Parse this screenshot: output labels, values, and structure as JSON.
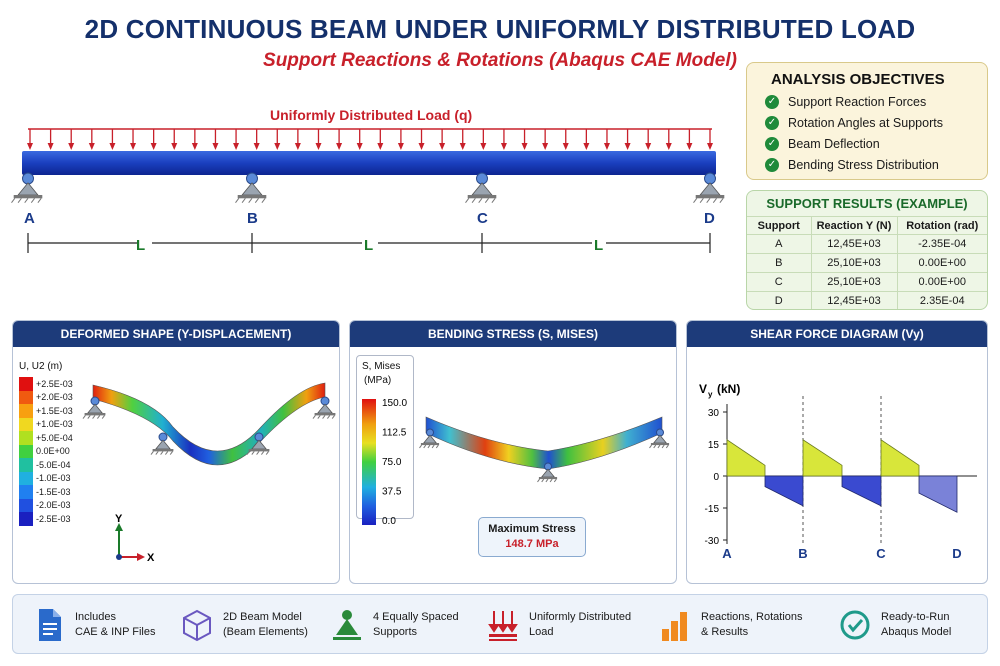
{
  "title": "2D CONTINUOUS BEAM UNDER UNIFORMLY DISTRIBUTED LOAD",
  "subtitle": "Support Reactions & Rotations (Abaqus CAE Model)",
  "beam": {
    "load_label": "Uniformly Distributed Load (q)",
    "supports": [
      "A",
      "B",
      "C",
      "D"
    ],
    "span_label": "L"
  },
  "objectives": {
    "heading": "ANALYSIS OBJECTIVES",
    "items": [
      "Support Reaction Forces",
      "Rotation Angles at Supports",
      "Beam Deflection",
      "Bending Stress Distribution"
    ]
  },
  "results": {
    "heading": "SUPPORT RESULTS (EXAMPLE)",
    "columns": [
      "Support",
      "Reaction Y (N)",
      "Rotation (rad)"
    ],
    "rows": [
      [
        "A",
        "12,45E+03",
        "-2.35E-04"
      ],
      [
        "B",
        "25,10E+03",
        "0.00E+00"
      ],
      [
        "C",
        "25,10E+03",
        "0.00E+00"
      ],
      [
        "D",
        "12,45E+03",
        "2.35E-04"
      ]
    ]
  },
  "deformed": {
    "heading": "DEFORMED SHAPE (Y-DISPLACEMENT)",
    "legend_title": "U, U2 (m)",
    "legend_values": [
      "+2.5E-03",
      "+2.0E-03",
      "+1.5E-03",
      "+1.0E-03",
      "+5.0E-04",
      "0.0E+00",
      "-5.0E-04",
      "-1.0E-03",
      "-1.5E-03",
      "-2.0E-03",
      "-2.5E-03"
    ],
    "legend_colors": [
      "#e01010",
      "#f05a10",
      "#f8a010",
      "#f0d820",
      "#b0e020",
      "#40d040",
      "#20c0a0",
      "#20b0e0",
      "#2080f0",
      "#2050e0",
      "#1a20c0"
    ],
    "axis_y": "Y",
    "axis_x": "X"
  },
  "stress": {
    "heading": "BENDING STRESS (S, MISES)",
    "legend_title_1": "S, Mises",
    "legend_title_2": "(MPa)",
    "legend_values": [
      "150.0",
      "112.5",
      "75.0",
      "37.5",
      "0.0"
    ],
    "legend_colors": [
      "#e01010",
      "#f0a010",
      "#e8e020",
      "#40d040",
      "#20b0e0",
      "#2060e0",
      "#1a20c0"
    ],
    "max_label": "Maximum Stress",
    "max_value": "148.7 MPa"
  },
  "shear": {
    "heading": "SHEAR FORCE DIAGRAM (Vy)",
    "ylabel": "V",
    "ylabel_sub": "y",
    "ylabel_unit": "(kN)",
    "ticks": [
      "30",
      "15",
      "0",
      "-15",
      "-30"
    ],
    "supports": [
      "A",
      "B",
      "C",
      "D"
    ]
  },
  "chart_data": {
    "type": "line",
    "title": "SHEAR FORCE DIAGRAM (Vy)",
    "xlabel": "",
    "ylabel": "Vy (kN)",
    "ylim": [
      -30,
      30
    ],
    "categories": [
      "A",
      "B",
      "C",
      "D"
    ],
    "series": [
      {
        "values": [
          17,
          5,
          -5,
          -14
        ]
      },
      {
        "values": [
          17,
          5,
          -5,
          -14
        ]
      },
      {
        "values": [
          17,
          5,
          -8,
          -17
        ]
      }
    ]
  },
  "features": [
    {
      "icon": "document-icon",
      "line1": "Includes",
      "line2": "CAE & INP Files"
    },
    {
      "icon": "cube-icon",
      "line1": "2D Beam Model",
      "line2": "(Beam Elements)"
    },
    {
      "icon": "support-icon",
      "line1": "4 Equally Spaced",
      "line2": "Supports"
    },
    {
      "icon": "load-arrows-icon",
      "line1": "Uniformly Distributed",
      "line2": "Load"
    },
    {
      "icon": "bar-chart-icon",
      "line1": "Reactions, Rotations",
      "line2": "& Results"
    },
    {
      "icon": "check-circle-icon",
      "line1": "Ready-to-Run",
      "line2": "Abaqus Model"
    }
  ],
  "colors": {
    "title": "#14306b",
    "accent_red": "#c8202a",
    "panel_header": "#1d3b7a",
    "beam": "#1a3fbf",
    "shear_positive": "#d8e63a",
    "shear_negative": "#3a4ad0"
  }
}
